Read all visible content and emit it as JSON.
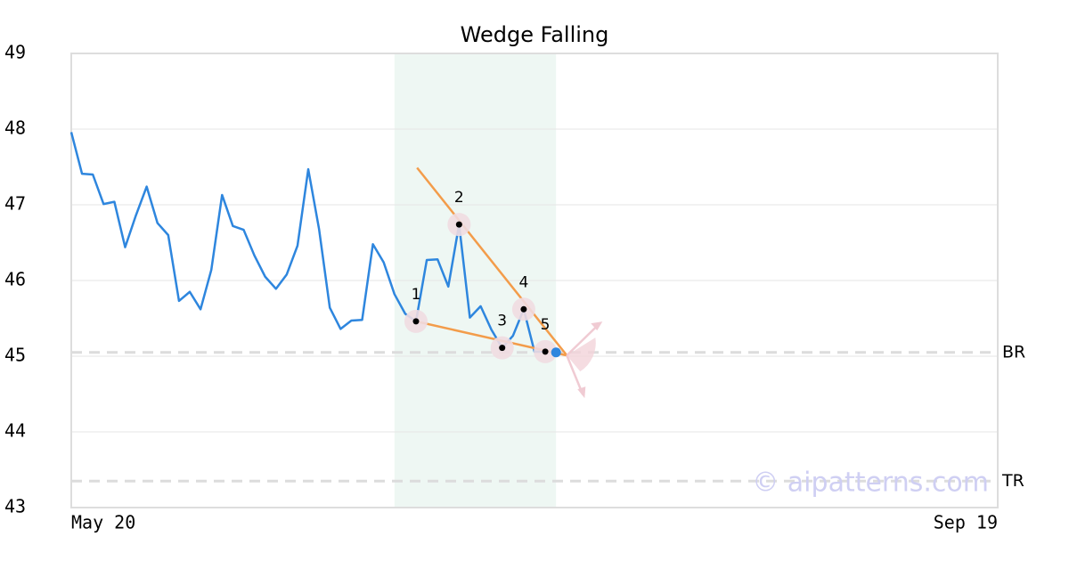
{
  "chart_data": {
    "type": "line",
    "title": "Wedge Falling",
    "x": [
      0,
      1,
      2,
      3,
      4,
      5,
      6,
      7,
      8,
      9,
      10,
      11,
      12,
      13,
      14,
      15,
      16,
      17,
      18,
      19,
      20,
      21,
      22,
      23,
      24,
      25,
      26,
      27,
      28,
      29,
      30,
      31,
      32,
      33,
      34,
      35,
      36,
      37,
      38,
      39,
      40,
      41,
      42,
      43,
      44
    ],
    "values": [
      47.96,
      47.41,
      47.4,
      47.01,
      47.04,
      46.44,
      46.86,
      47.24,
      46.76,
      46.6,
      45.73,
      45.85,
      45.62,
      46.14,
      47.13,
      46.72,
      46.67,
      46.33,
      46.05,
      45.89,
      46.08,
      46.46,
      47.47,
      46.68,
      45.64,
      45.36,
      45.47,
      45.48,
      46.48,
      46.24,
      45.82,
      45.56,
      45.46,
      46.27,
      46.28,
      45.92,
      46.74,
      45.51,
      45.66,
      45.35,
      45.11,
      45.27,
      45.62,
      45.06,
      45.06
    ],
    "color": "#2e86de",
    "xlim": [
      0,
      86
    ],
    "xticks": [
      {
        "value": 0,
        "label": "May 20"
      },
      {
        "value": 86,
        "label": "Sep 19"
      }
    ],
    "ylim": [
      43,
      49
    ],
    "yticks": [
      43,
      44,
      45,
      46,
      47,
      48,
      49
    ],
    "grid": true,
    "highlight_x": [
      30,
      45
    ],
    "highlight_color": "#eef7f3",
    "pattern_color": "#f39c4a",
    "upper_line": {
      "x": [
        32.1,
        46
      ],
      "y": [
        47.49,
        45.01
      ]
    },
    "lower_line": {
      "x": [
        32,
        46
      ],
      "y": [
        45.46,
        45.01
      ]
    },
    "pattern_points": [
      {
        "label": "1",
        "x": 32,
        "y": 45.46
      },
      {
        "label": "2",
        "x": 36,
        "y": 46.74
      },
      {
        "label": "3",
        "x": 40,
        "y": 45.11
      },
      {
        "label": "4",
        "x": 42,
        "y": 45.62
      },
      {
        "label": "5",
        "x": 44,
        "y": 45.06
      }
    ],
    "last_point": {
      "x": 45,
      "y": 45.05
    },
    "levels": [
      {
        "label": "BR",
        "value": 45.05
      },
      {
        "label": "TR",
        "value": 43.35
      }
    ],
    "watermark": "© aipatterns.com"
  }
}
